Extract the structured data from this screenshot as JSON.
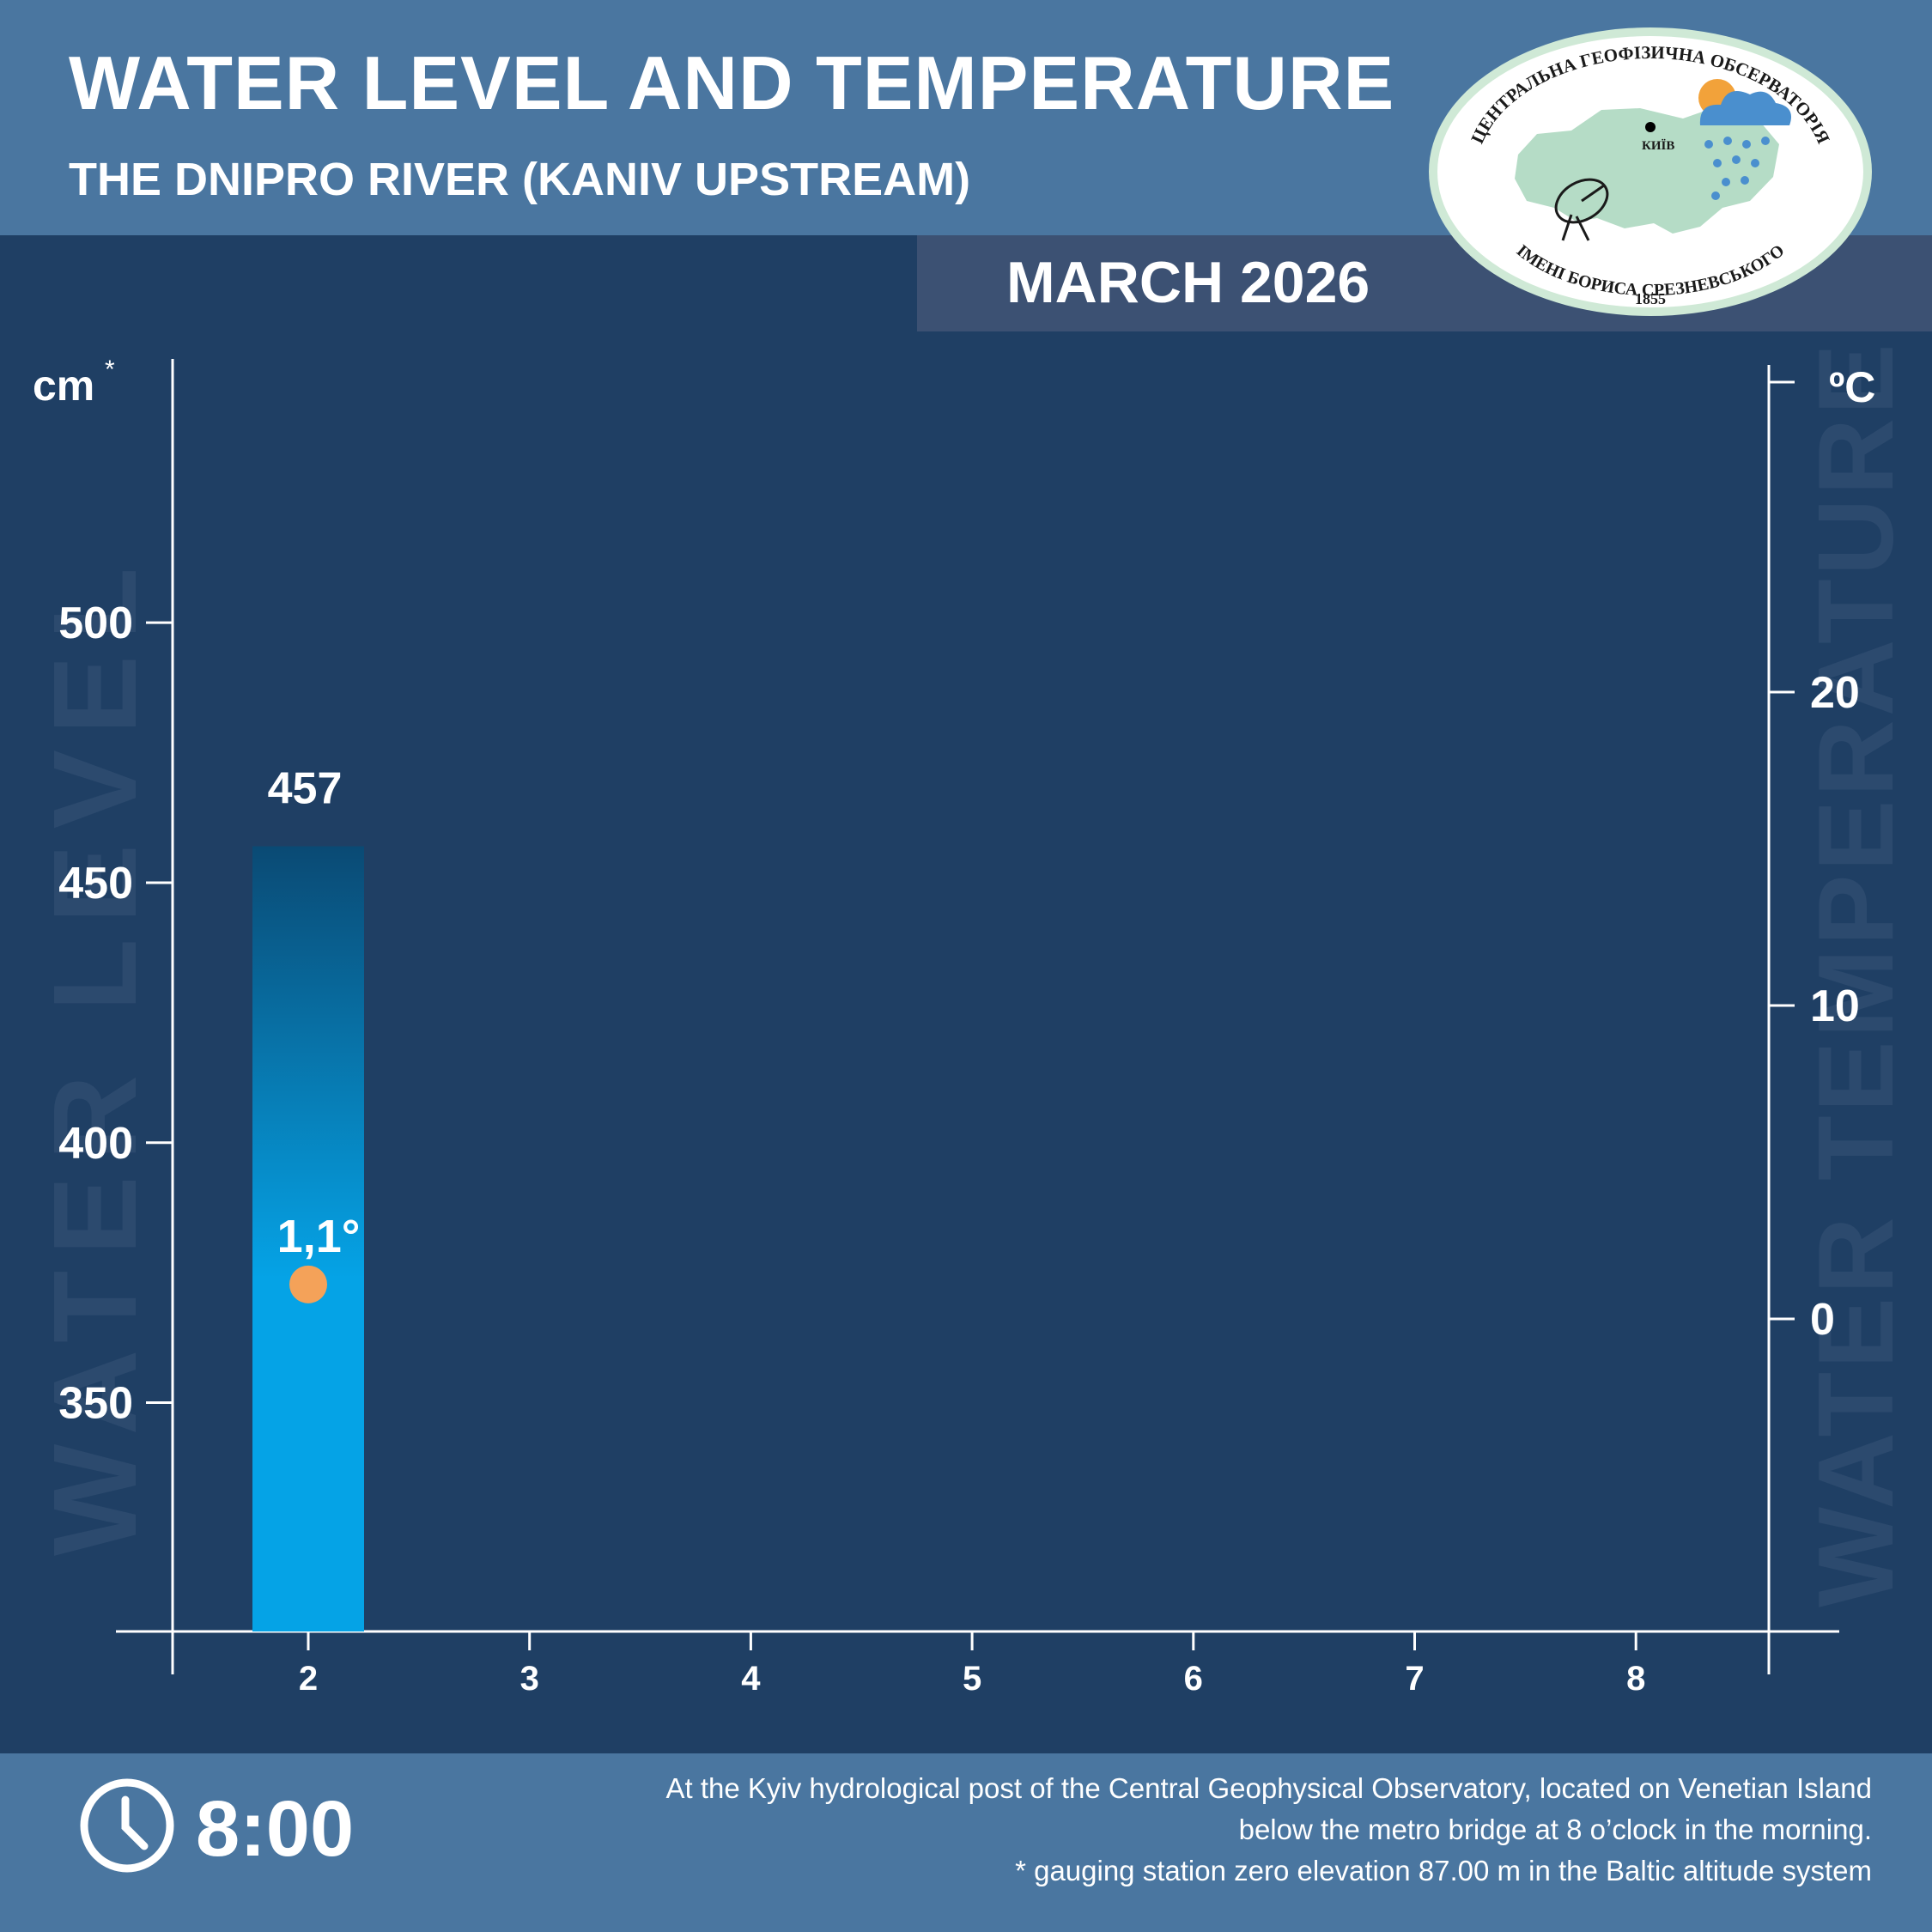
{
  "header": {
    "title": "WATER LEVEL AND TEMPERATURE",
    "subtitle": "THE DNIPRO RIVER (KANIV UPSTREAM)",
    "month": "MARCH 2026"
  },
  "logo": {
    "top_text": "ЦЕНТРАЛЬНА ГЕОФІЗИЧНА ОБСЕРВАТОРІЯ",
    "bottom_text": "ІМЕНІ БОРИСА СРЕЗНЕВСЬКОГО",
    "year": "1855",
    "city": "КИЇВ"
  },
  "footer": {
    "clock_icon": "clock-icon",
    "time": "8:00",
    "note_line1": "At the Kyiv hydrological post of the Central Geophysical Observatory, located on Venetian Island",
    "note_line2": "below the metro bridge  at 8 o’clock in the morning.",
    "note_line3": "* gauging station zero elevation 87.00 m in the Baltic altitude system"
  },
  "colors": {
    "background": "#1f3f64",
    "header": "#4a76a0",
    "month_band": "#3c5173",
    "bar_top": "#0a4a74",
    "bar_bottom": "#05a3e6",
    "temp_point": "#f4a259",
    "watermark": "#2c4a6e"
  },
  "chart_data": {
    "type": "bar",
    "title": "WATER LEVEL AND TEMPERATURE",
    "x_ticks": [
      "2",
      "3",
      "4",
      "5",
      "6",
      "7",
      "8"
    ],
    "left_axis": {
      "unit": "cm",
      "unit_mark": "*",
      "watermark": "WATER LEVEL",
      "ticks": [
        350,
        400,
        450,
        500
      ],
      "range": [
        306,
        557
      ]
    },
    "right_axis": {
      "unit": "ºC",
      "watermark": "WATER TEMPERATURE",
      "ticks": [
        0,
        10,
        20
      ],
      "range": [
        -10,
        30
      ]
    },
    "series": [
      {
        "name": "water level",
        "type": "bar",
        "points": [
          {
            "x": "2",
            "y": 457,
            "label": "457"
          }
        ]
      },
      {
        "name": "water temperature",
        "type": "scatter",
        "points": [
          {
            "x": "2",
            "y": 1.1,
            "label": "1,1°"
          }
        ]
      }
    ],
    "grid": false
  }
}
